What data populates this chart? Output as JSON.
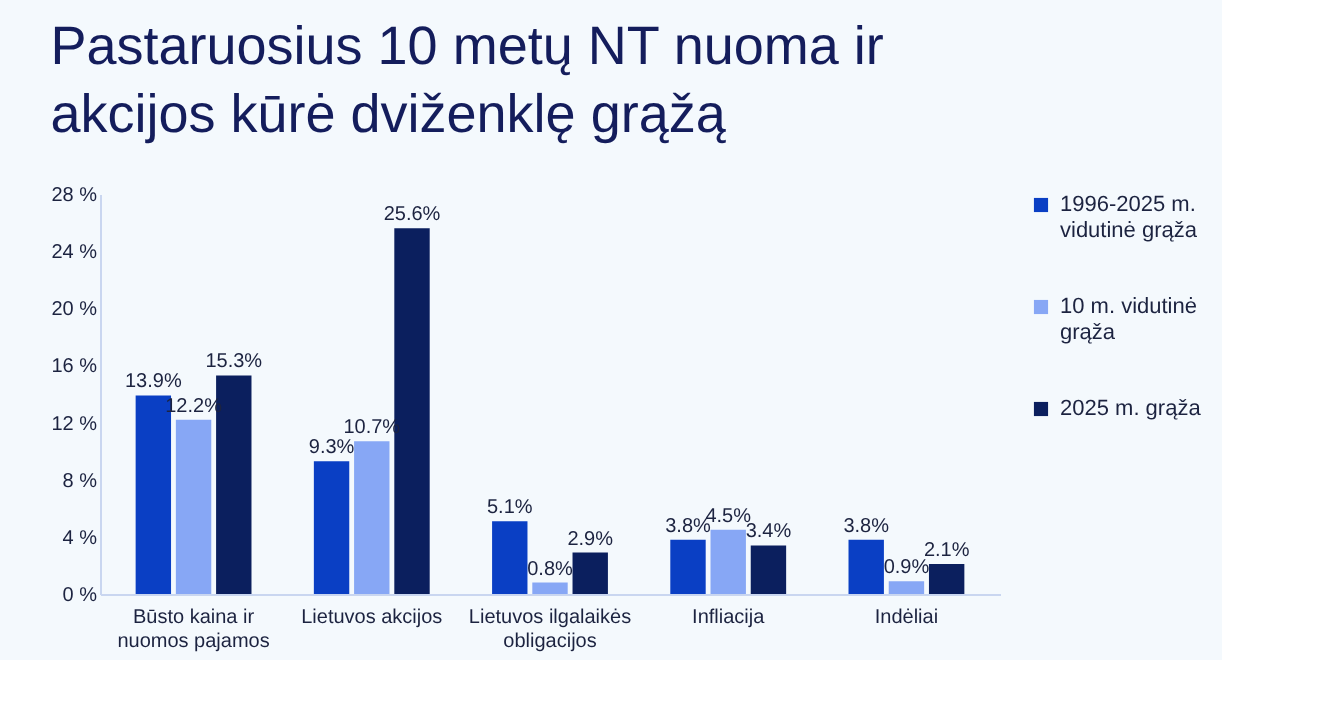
{
  "chart_data": {
    "type": "bar",
    "title": "Pastaruosius 10 metų NT nuoma ir akcijos kūrė dviženklę grąžą",
    "categories": [
      "Būsto kaina ir nuomos pajamos",
      "Lietuvos akcijos",
      "Lietuvos ilgalaikės obligacijos",
      "Infliacija",
      "Indėliai"
    ],
    "series": [
      {
        "name": "1996-2025 m. vidutinė grąža",
        "color": "#0a3fc4",
        "values": [
          13.9,
          9.3,
          5.1,
          3.8,
          3.8
        ],
        "value_labels": [
          "13.9%",
          "9.3%",
          "5.1%",
          "3.8%",
          "3.8%"
        ]
      },
      {
        "name": "10 m. vidutinė grąža",
        "color": "#87a7f5",
        "values": [
          12.2,
          10.7,
          0.8,
          4.5,
          0.9
        ],
        "value_labels": [
          "12.2%",
          "10.7%",
          "0.8%",
          "4.5%",
          "0.9%"
        ]
      },
      {
        "name": "2025 m. grąža",
        "color": "#0b1f5e",
        "values": [
          15.3,
          25.6,
          2.9,
          3.4,
          2.1
        ],
        "value_labels": [
          "15.3%",
          "25.6%",
          "2.9%",
          "3.4%",
          "2.1%"
        ]
      }
    ],
    "ylim": [
      0,
      28
    ],
    "yticks": [
      {
        "value": 0,
        "label": "0 %"
      },
      {
        "value": 4,
        "label": "4 %"
      },
      {
        "value": 8,
        "label": "8 %"
      },
      {
        "value": 12,
        "label": "12 %"
      },
      {
        "value": 16,
        "label": "16 %"
      },
      {
        "value": 20,
        "label": "20 %"
      },
      {
        "value": 24,
        "label": "24 %"
      },
      {
        "value": 28,
        "label": "28 %"
      }
    ],
    "grid": false,
    "legend": "right"
  }
}
